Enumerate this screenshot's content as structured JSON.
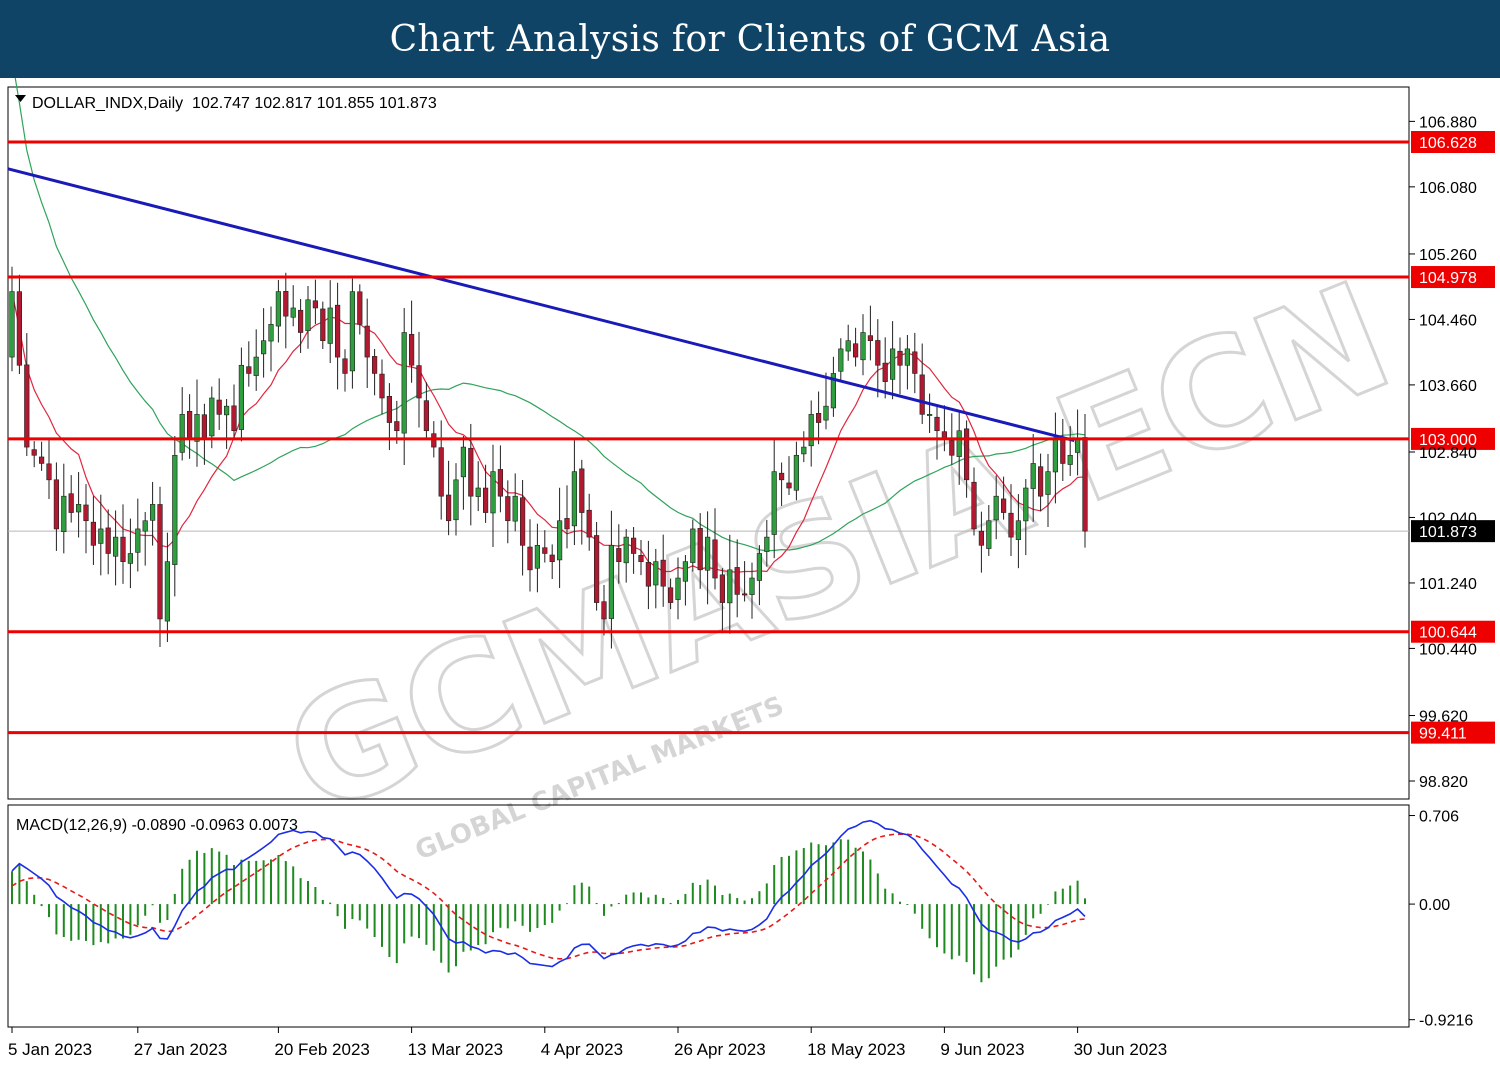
{
  "header": {
    "title": "Chart Analysis for Clients of GCM Asia"
  },
  "watermark": {
    "text": "GCMASIA ECN",
    "subtext": "GLOBAL CAPITAL MARKETS"
  },
  "colors": {
    "trendline": "#1a1ab8",
    "level": "#ee0000",
    "ma_fast": "#e0263e",
    "ma_slow": "#2fa35a",
    "macd": "#1a2ee6",
    "signal": "#e61a1a",
    "hist": "#1f8a1f",
    "bull": "#2e9e3e",
    "bear": "#b01a30"
  },
  "chart_data": [
    {
      "type": "candlestick",
      "symbol_info": "DOLLAR_INDX,Daily  102.747 102.817 101.855 101.873",
      "ylim": [
        98.6,
        107.3
      ],
      "y_ticks": [
        "106.880",
        "106.080",
        "105.260",
        "104.460",
        "103.660",
        "102.840",
        "102.040",
        "101.240",
        "100.440",
        "99.620",
        "98.820"
      ],
      "x_ticks": [
        "5 Jan 2023",
        "27 Jan 2023",
        "20 Feb 2023",
        "13 Mar 2023",
        "4 Apr 2023",
        "26 Apr 2023",
        "18 May 2023",
        "9 Jun 2023",
        "30 Jun 2023"
      ],
      "levels": [
        "106.628",
        "104.978",
        "103.000",
        "100.644",
        "99.411"
      ],
      "current_price": "101.873",
      "trendline": {
        "from": [
          0,
          106.3
        ],
        "to": [
          143,
          102.98
        ]
      },
      "closes": [
        104.8,
        103.9,
        102.9,
        102.8,
        102.7,
        102.5,
        101.9,
        102.3,
        102.1,
        102.2,
        102.0,
        101.7,
        101.9,
        101.6,
        101.8,
        101.5,
        101.6,
        101.9,
        102.0,
        102.2,
        100.8,
        101.5,
        102.8,
        103.3,
        103.0,
        103.3,
        103.0,
        103.5,
        103.3,
        103.4,
        103.1,
        103.9,
        103.8,
        104.0,
        104.2,
        104.4,
        104.8,
        104.5,
        104.6,
        104.3,
        104.7,
        104.6,
        104.2,
        104.6,
        104.0,
        103.8,
        104.8,
        104.4,
        104.0,
        103.8,
        103.5,
        103.2,
        103.1,
        104.3,
        103.9,
        103.5,
        103.1,
        102.9,
        102.3,
        102.0,
        102.5,
        102.9,
        102.3,
        102.4,
        102.1,
        102.6,
        102.3,
        102.0,
        102.3,
        101.7,
        101.4,
        101.7,
        101.6,
        101.5,
        102.0,
        101.9,
        102.6,
        102.1,
        101.8,
        101.0,
        100.8,
        101.7,
        101.5,
        101.8,
        101.6,
        101.5,
        101.2,
        101.5,
        101.2,
        101.0,
        101.3,
        101.5,
        101.9,
        101.4,
        101.8,
        101.3,
        101.0,
        101.4,
        101.1,
        101.1,
        101.3,
        101.6,
        101.8,
        102.6,
        102.5,
        102.4,
        102.8,
        102.9,
        103.3,
        103.2,
        103.4,
        103.8,
        104.1,
        104.2,
        104.0,
        104.3,
        104.2,
        103.9,
        103.7,
        104.1,
        103.9,
        104.1,
        103.8,
        103.3,
        103.3,
        103.1,
        103.0,
        102.8,
        103.1,
        102.5,
        101.9,
        101.7,
        102.0,
        102.3,
        102.1,
        101.8,
        102.0,
        102.4,
        102.7,
        102.3,
        102.6,
        103.0,
        102.7,
        102.8,
        103.0,
        101.873
      ]
    },
    {
      "type": "macd",
      "info": "MACD(12,26,9) -0.0890 -0.0963 0.0073",
      "ylim": [
        -0.98,
        0.79
      ],
      "y_ticks": [
        "0.706",
        "0.00",
        "-0.9216"
      ]
    }
  ]
}
